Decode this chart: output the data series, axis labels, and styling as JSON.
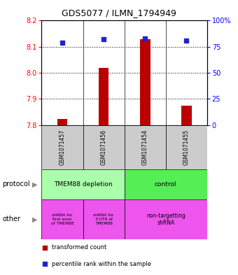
{
  "title": "GDS5077 / ILMN_1794949",
  "samples": [
    "GSM1071457",
    "GSM1071456",
    "GSM1071454",
    "GSM1071455"
  ],
  "transformed_counts": [
    7.824,
    8.02,
    8.13,
    7.875
  ],
  "percentile_ranks": [
    79,
    82,
    83,
    81
  ],
  "ylim": [
    7.8,
    8.2
  ],
  "yticks": [
    7.8,
    7.9,
    8.0,
    8.1,
    8.2
  ],
  "y2lim": [
    0,
    100
  ],
  "y2ticks": [
    0,
    25,
    50,
    75,
    100
  ],
  "y2ticklabels": [
    "0",
    "25",
    "50",
    "75",
    "100%"
  ],
  "bar_color": "#bb0000",
  "dot_color": "#2222cc",
  "bar_bottom": 7.8,
  "protocol_label_left": "TMEM88 depletion",
  "protocol_label_right": "control",
  "protocol_color_left": "#aaffaa",
  "protocol_color_right": "#55ee55",
  "other_label_1": "shRNA for\nfirst exon\nof TMEM88",
  "other_label_2": "shRNA for\n3'UTR of\nTMEM88",
  "other_label_3": "non-targetting\nshRNA",
  "other_color": "#ee55ee",
  "legend_bar_label": "transformed count",
  "legend_dot_label": "percentile rank within the sample",
  "sample_box_color": "#cccccc",
  "left_label_protocol": "protocol",
  "left_label_other": "other"
}
